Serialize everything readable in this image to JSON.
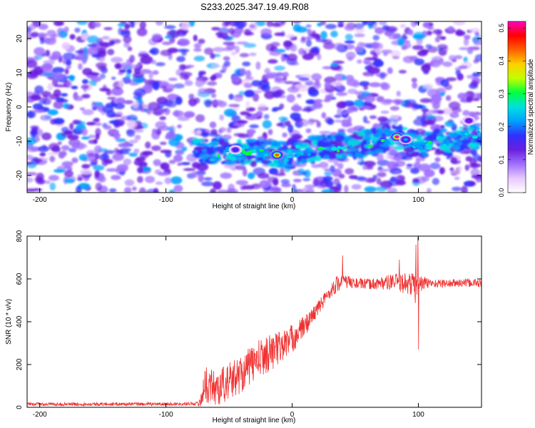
{
  "title": "S233.2025.347.19.49.R08",
  "chart_data": [
    {
      "type": "heatmap",
      "xlabel": "Height of straight line (km)",
      "ylabel": "Frequency (Hz)",
      "xlim": [
        -210,
        150
      ],
      "ylim": [
        -25,
        25
      ],
      "xticks": [
        -200,
        -100,
        0,
        100
      ],
      "xtick_labels": [
        "-200",
        "-100",
        "0",
        "100"
      ],
      "yticks": [
        -20,
        -10,
        0,
        10,
        20
      ],
      "ytick_labels": [
        "-20",
        "-10",
        "0",
        "10",
        "20"
      ],
      "colorbar": {
        "label": "Normalized spectral amplitude",
        "range": [
          0,
          0.52
        ],
        "ticks": [
          0,
          0.1,
          0.2,
          0.3,
          0.4,
          0.5
        ],
        "tick_labels": [
          "0.0",
          "0.1",
          "0.2",
          "0.3",
          "0.4",
          "0.5"
        ],
        "colormap": [
          "#ffffff",
          "#e8c8ff",
          "#a070ff",
          "#6a1fe0",
          "#3030ff",
          "#00a0ff",
          "#00e0e0",
          "#00ff40",
          "#c0ff00",
          "#ffd000",
          "#ff6000",
          "#ff0000",
          "#ff00c0"
        ]
      },
      "ridge": {
        "description_values": "frequency band vs height",
        "x": [
          -75,
          -40,
          -10,
          20,
          50,
          85,
          100,
          130,
          150
        ],
        "freq": [
          -13,
          -13,
          -14,
          -12,
          -11,
          -9,
          -11,
          -10,
          -8
        ],
        "hotspots": [
          {
            "x": -12,
            "freq": -14,
            "amp": 0.45
          },
          {
            "x": 83,
            "freq": -8.7,
            "amp": 0.52
          },
          {
            "x": 90,
            "freq": -9.5,
            "amp": 0.22
          },
          {
            "x": -45,
            "freq": -12.5,
            "amp": 0.18
          },
          {
            "x": 140,
            "freq": -4,
            "amp": 0.15
          }
        ]
      }
    },
    {
      "type": "line",
      "xlabel": "Height of straight line (km)",
      "ylabel": "SNR (10 * v/v)",
      "xlim": [
        -210,
        150
      ],
      "ylim": [
        0,
        800
      ],
      "xticks": [
        -200,
        -100,
        0,
        100
      ],
      "xtick_labels": [
        "-200",
        "-100",
        "0",
        "100"
      ],
      "yticks": [
        0,
        200,
        400,
        600,
        800
      ],
      "ytick_labels": [
        "0",
        "200",
        "400",
        "600",
        "800"
      ],
      "color": "#f03030",
      "series": [
        {
          "x": [
            -210,
            -150,
            -100,
            -75,
            -72,
            -70,
            -60,
            -50,
            -40,
            -30,
            -20,
            -10,
            0,
            10,
            20,
            30,
            35,
            40,
            50,
            60,
            70,
            80,
            90,
            95,
            98,
            100,
            102,
            110,
            120,
            130,
            140,
            150
          ],
          "values": [
            15,
            15,
            15,
            18,
            30,
            110,
            90,
            120,
            160,
            210,
            250,
            280,
            320,
            380,
            460,
            540,
            575,
            590,
            580,
            575,
            580,
            585,
            580,
            575,
            560,
            570,
            580,
            580,
            578,
            580,
            582,
            580
          ],
          "noise": [
            8,
            8,
            8,
            8,
            40,
            80,
            90,
            90,
            90,
            90,
            90,
            80,
            70,
            50,
            35,
            30,
            40,
            35,
            25,
            25,
            30,
            40,
            50,
            60,
            80,
            90,
            40,
            20,
            20,
            20,
            20,
            20
          ],
          "spikes": [
            {
              "x": 40,
              "value": 710
            },
            {
              "x": 98,
              "value": 760
            },
            {
              "x": 99.5,
              "value": 800
            },
            {
              "x": 100,
              "value": 270
            },
            {
              "x": 85,
              "value": 690
            }
          ]
        }
      ]
    }
  ]
}
